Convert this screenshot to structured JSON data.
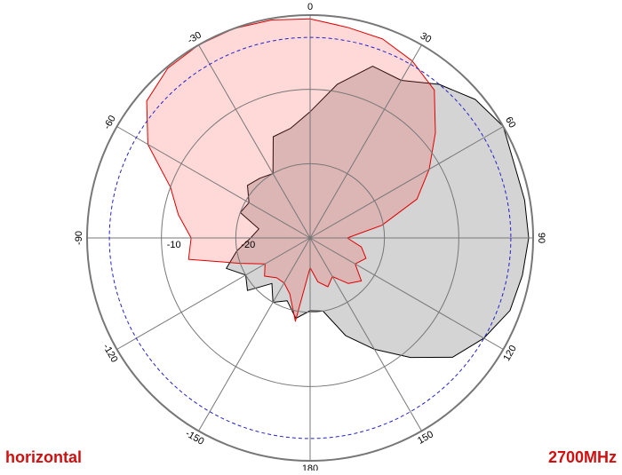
{
  "chart_data": {
    "type": "polar",
    "x": [
      -180,
      -170,
      -160,
      -150,
      -140,
      -130,
      -120,
      -110,
      -100,
      -90,
      -80,
      -70,
      -60,
      -50,
      -40,
      -30,
      -20,
      -10,
      0,
      10,
      20,
      30,
      40,
      50,
      60,
      70,
      80,
      90,
      100,
      110,
      120,
      130,
      140,
      150,
      160,
      170
    ],
    "series": [
      {
        "color": "#000000",
        "fill": "#d4d4d4",
        "values": [
          -20.2,
          -19,
          -21,
          -20,
          -22,
          -19,
          -20,
          -18,
          -20,
          -22,
          -23,
          -20,
          -20.5,
          -19,
          -19.5,
          -20,
          -15.5,
          -15,
          -13,
          -9,
          -5.4,
          -5.5,
          -3,
          -1,
          0,
          -0.8,
          -0.7,
          -0.6,
          -1,
          -1.4,
          -3,
          -5,
          -9,
          -12.7,
          -16,
          -20
        ]
      },
      {
        "color": "#e00000",
        "fill": "rgba(255,60,60,0.2)",
        "values": [
          -26,
          -18.6,
          -22,
          -23,
          -23,
          -22,
          -23,
          -20,
          -13.4,
          -14,
          -12,
          -10,
          -4.8,
          -1.3,
          -0.2,
          0,
          0,
          -0.2,
          -0.5,
          -1.2,
          -1.5,
          -2.5,
          -4,
          -8,
          -11.5,
          -14.7,
          -20.2,
          -25,
          -23,
          -22,
          -23,
          -21,
          -22,
          -24,
          -23,
          -24
        ]
      }
    ],
    "rlim": [
      -30,
      0
    ],
    "rticks": [
      -20,
      -10
    ],
    "reference_circle": -3,
    "xticks": [
      0,
      30,
      60,
      90,
      120,
      150,
      180,
      -150,
      -120,
      -90,
      -60,
      -30
    ],
    "annotations": [
      "horizontal",
      "2700MHz"
    ]
  }
}
